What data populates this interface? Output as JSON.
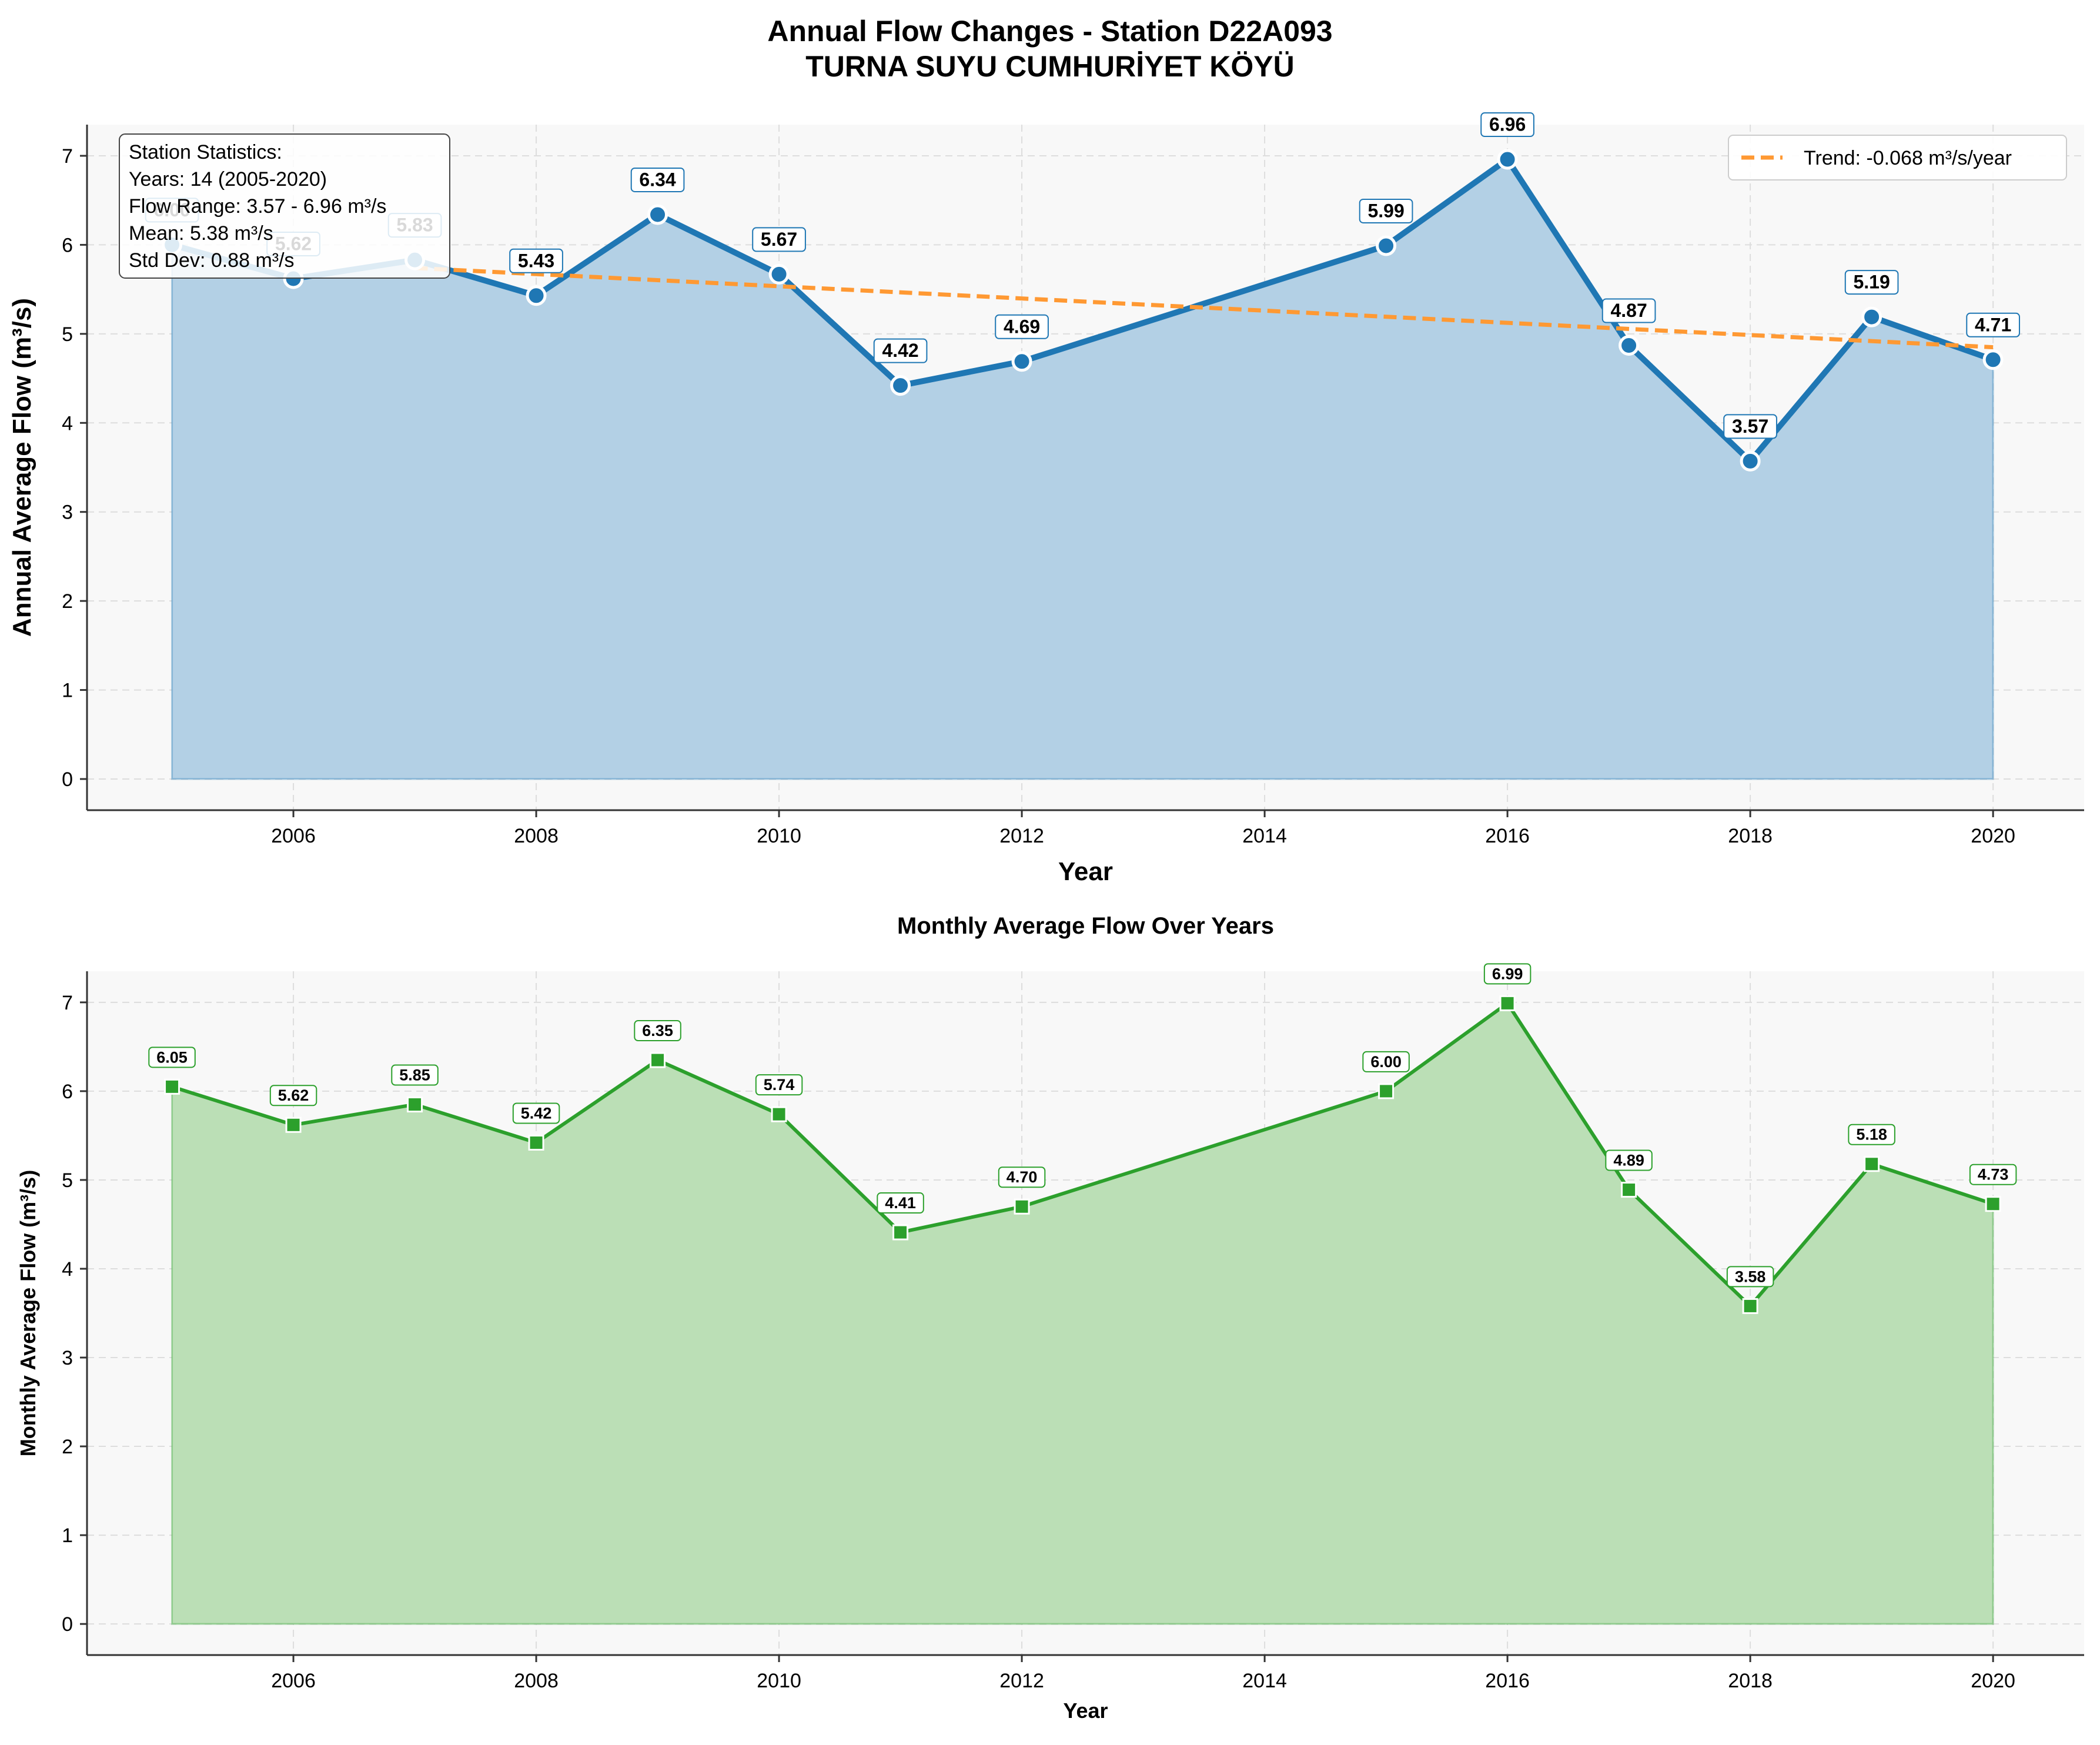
{
  "figure": {
    "title_line1": "Annual Flow Changes - Station D22A093",
    "title_line2": "TURNA SUYU CUMHURİYET KÖYÜ"
  },
  "colors": {
    "annual_line": "#1f77b4",
    "annual_fill": "#b3d0e5",
    "trend": "#ff9933",
    "monthly_line": "#2ca02c",
    "monthly_fill": "#bbdfb6",
    "axes_bg": "#f8f8f8",
    "grid": "#dddddd"
  },
  "stats_box": {
    "lines": [
      "Station Statistics:",
      "Years: 14 (2005-2020)",
      "Flow Range: 3.57 - 6.96 m³/s",
      "Mean: 5.38 m³/s",
      "Std Dev: 0.88 m³/s"
    ]
  },
  "chart_data": [
    {
      "type": "area",
      "title": "",
      "xlabel": "Year",
      "ylabel": "Annual Average Flow (m³/s)",
      "xlim": [
        2004.3,
        2020.75
      ],
      "ylim": [
        -0.35,
        7.35
      ],
      "xticks": [
        2006,
        2008,
        2010,
        2012,
        2014,
        2016,
        2018,
        2020
      ],
      "yticks": [
        0,
        1,
        2,
        3,
        4,
        5,
        6,
        7
      ],
      "grid": true,
      "legend_position": "top-right",
      "x": [
        2005,
        2006,
        2007,
        2008,
        2009,
        2010,
        2011,
        2012,
        2015,
        2016,
        2017,
        2018,
        2019,
        2020
      ],
      "series": [
        {
          "values": [
            6.0,
            5.62,
            5.83,
            5.43,
            6.34,
            5.67,
            4.42,
            4.69,
            5.99,
            6.96,
            4.87,
            3.57,
            5.19,
            4.71
          ],
          "labels": [
            "6.00",
            "5.62",
            "5.83",
            "5.43",
            "6.34",
            "5.67",
            "4.42",
            "4.69",
            "5.99",
            "6.96",
            "4.87",
            "3.57",
            "5.19",
            "4.71"
          ]
        }
      ],
      "trend": {
        "name": "Trend: -0.068 m³/s/year",
        "x": [
          2007,
          2020
        ],
        "y": [
          5.74,
          4.85
        ]
      }
    },
    {
      "type": "area",
      "title": "Monthly Average Flow Over Years",
      "xlabel": "Year",
      "ylabel": "Monthly Average Flow (m³/s)",
      "xlim": [
        2004.3,
        2020.75
      ],
      "ylim": [
        -0.35,
        7.35
      ],
      "xticks": [
        2006,
        2008,
        2010,
        2012,
        2014,
        2016,
        2018,
        2020
      ],
      "yticks": [
        0,
        1,
        2,
        3,
        4,
        5,
        6,
        7
      ],
      "grid": true,
      "x": [
        2005,
        2006,
        2007,
        2008,
        2009,
        2010,
        2011,
        2012,
        2015,
        2016,
        2017,
        2018,
        2019,
        2020
      ],
      "series": [
        {
          "values": [
            6.05,
            5.62,
            5.85,
            5.42,
            6.35,
            5.74,
            4.41,
            4.7,
            6.0,
            6.99,
            4.89,
            3.58,
            5.18,
            4.73
          ],
          "labels": [
            "6.05",
            "5.62",
            "5.85",
            "5.42",
            "6.35",
            "5.74",
            "4.41",
            "4.70",
            "6.00",
            "6.99",
            "4.89",
            "3.58",
            "5.18",
            "4.73"
          ]
        }
      ]
    }
  ]
}
